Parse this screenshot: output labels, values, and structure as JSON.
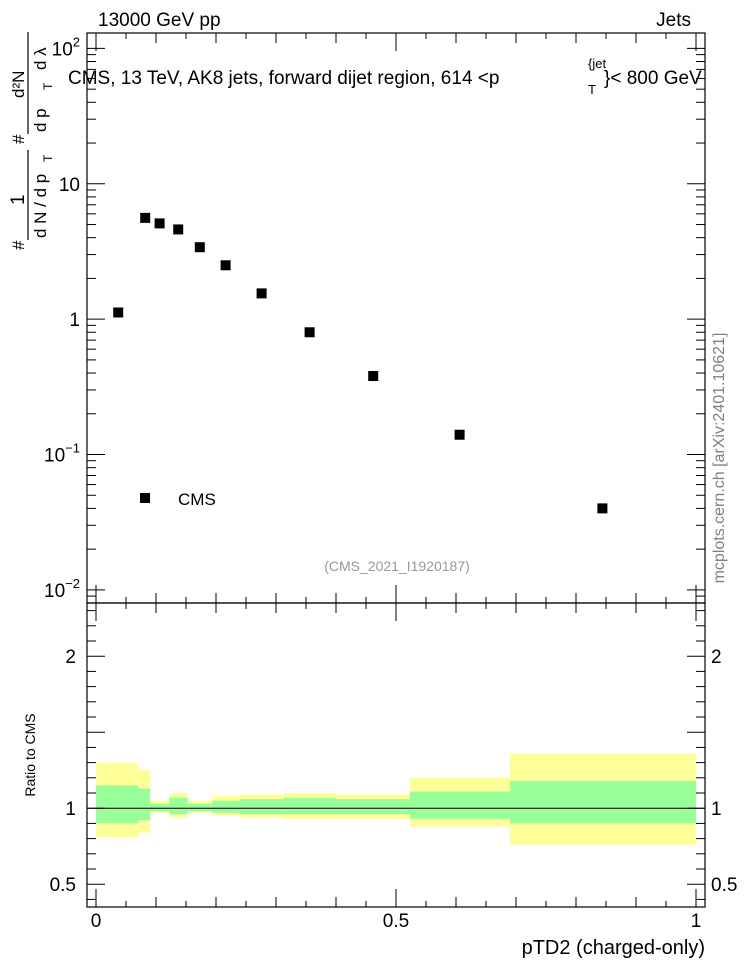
{
  "header": {
    "energy_label": "13000 GeV pp",
    "category_label": "Jets"
  },
  "chart_data": {
    "type": "scatter",
    "title": "CMS, 13 TeV, AK8 jets, forward dijet region, 614 <p",
    "title_sup": "{jet",
    "title_sub": "T",
    "title_tail": "}< 800 GeV",
    "ylabel_parts": [
      "#",
      "1",
      "d N / d p",
      "T",
      "#",
      "d²N",
      "d p",
      "T",
      "d λ"
    ],
    "xlabel": "pTD2 (charged-only)",
    "yscale": "log",
    "ylim": [
      0.008,
      130
    ],
    "xlim": [
      -0.015,
      1.015
    ],
    "y_tick_labels": [
      {
        "value": 100,
        "base": "10",
        "exp": "2"
      },
      {
        "value": 10,
        "base": "10",
        "exp": ""
      },
      {
        "value": 1,
        "base": "1",
        "exp": ""
      },
      {
        "value": 0.1,
        "base": "10",
        "exp": "−1"
      },
      {
        "value": 0.01,
        "base": "10",
        "exp": "−2"
      }
    ],
    "x_tick_labels": [
      {
        "value": 0,
        "label": "0"
      },
      {
        "value": 0.5,
        "label": "0.5"
      },
      {
        "value": 1,
        "label": "1"
      }
    ],
    "series": [
      {
        "name": "CMS",
        "marker": "square",
        "color": "#000000",
        "x": [
          0.037,
          0.082,
          0.106,
          0.137,
          0.173,
          0.216,
          0.276,
          0.356,
          0.462,
          0.606,
          0.844
        ],
        "y": [
          1.12,
          5.6,
          5.1,
          4.6,
          3.4,
          2.5,
          1.55,
          0.8,
          0.38,
          0.14,
          0.04
        ]
      }
    ],
    "legend": {
      "placement": "bottom-left",
      "label": "CMS"
    },
    "analysis_label": "(CMS_2021_I1920187)",
    "ratio_panel": {
      "ylabel": "Ratio to CMS",
      "ylim": [
        0.35,
        2.35
      ],
      "y_tick_labels": [
        {
          "value": 2,
          "label": "2"
        },
        {
          "value": 1,
          "label": "1"
        },
        {
          "value": 0.5,
          "label": "0.5"
        }
      ],
      "reference_line": 1.0,
      "bins": [
        {
          "x0": 0.0,
          "x1": 0.07,
          "inner": [
            0.9,
            1.15
          ],
          "outer": [
            0.81,
            1.3
          ]
        },
        {
          "x0": 0.07,
          "x1": 0.09,
          "inner": [
            0.92,
            1.13
          ],
          "outer": [
            0.84,
            1.25
          ]
        },
        {
          "x0": 0.09,
          "x1": 0.122,
          "inner": [
            0.98,
            1.03
          ],
          "outer": [
            0.97,
            1.05
          ]
        },
        {
          "x0": 0.122,
          "x1": 0.152,
          "inner": [
            0.96,
            1.07
          ],
          "outer": [
            0.94,
            1.1
          ]
        },
        {
          "x0": 0.152,
          "x1": 0.194,
          "inner": [
            0.98,
            1.03
          ],
          "outer": [
            0.97,
            1.05
          ]
        },
        {
          "x0": 0.194,
          "x1": 0.239,
          "inner": [
            0.97,
            1.05
          ],
          "outer": [
            0.95,
            1.08
          ]
        },
        {
          "x0": 0.239,
          "x1": 0.313,
          "inner": [
            0.96,
            1.06
          ],
          "outer": [
            0.94,
            1.09
          ]
        },
        {
          "x0": 0.313,
          "x1": 0.4,
          "inner": [
            0.96,
            1.07
          ],
          "outer": [
            0.93,
            1.1
          ]
        },
        {
          "x0": 0.4,
          "x1": 0.523,
          "inner": [
            0.96,
            1.06
          ],
          "outer": [
            0.93,
            1.09
          ]
        },
        {
          "x0": 0.523,
          "x1": 0.69,
          "inner": [
            0.93,
            1.11
          ],
          "outer": [
            0.88,
            1.2
          ]
        },
        {
          "x0": 0.69,
          "x1": 1.0,
          "inner": [
            0.9,
            1.18
          ],
          "outer": [
            0.76,
            1.36
          ]
        }
      ],
      "colors": {
        "inner": "#99ff99",
        "outer": "#ffff99"
      }
    }
  },
  "side_label": "mcplots.cern.ch [arXiv:2401.10621]",
  "colors": {
    "side_label": "#808080",
    "analysis_label": "#999999",
    "axis": "#000000"
  }
}
